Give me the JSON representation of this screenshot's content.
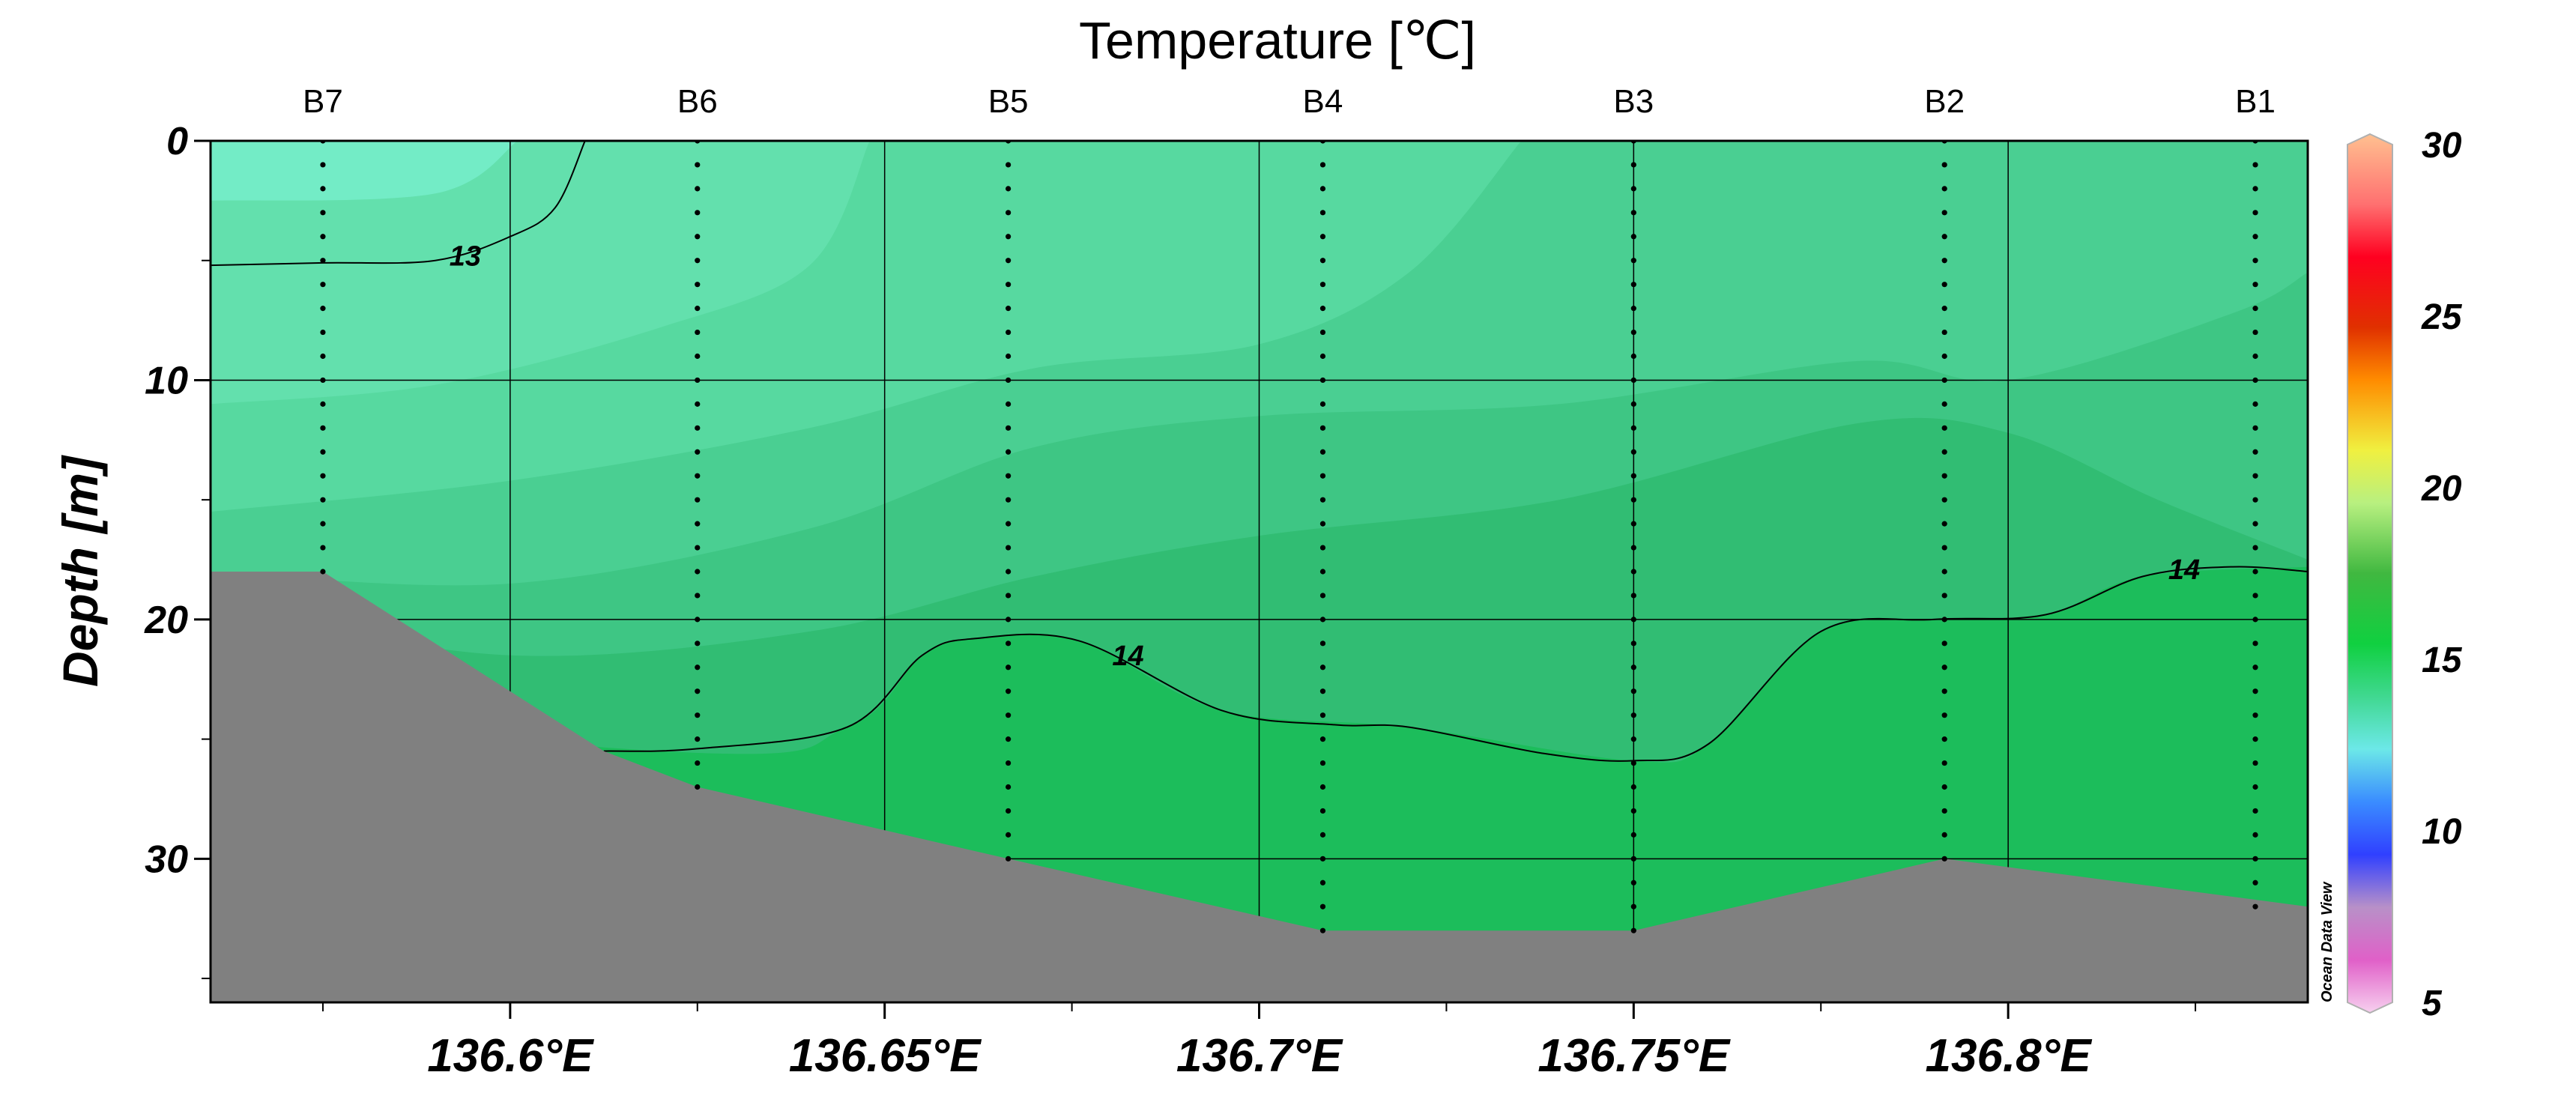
{
  "chart_data": {
    "type": "heatmap",
    "title": "Temperature [℃]",
    "ylabel": "Depth [m]",
    "xlabel": "",
    "x_tick_labels": [
      "136.6°E",
      "136.65°E",
      "136.7°E",
      "136.75°E",
      "136.8°E"
    ],
    "x_ticks": [
      136.6,
      136.65,
      136.7,
      136.75,
      136.8
    ],
    "x_minor_ticks": [
      136.575,
      136.625,
      136.675,
      136.725,
      136.775,
      136.825
    ],
    "xlim": [
      136.56,
      136.84
    ],
    "y_tick_labels": [
      "0",
      "10",
      "20",
      "30"
    ],
    "y_ticks": [
      0,
      10,
      20,
      30
    ],
    "y_minor_ticks": [
      5,
      15,
      25,
      35
    ],
    "ylim": [
      0,
      36
    ],
    "grid": true,
    "stations": [
      {
        "name": "B7",
        "lon": 136.575,
        "max_depth": 18
      },
      {
        "name": "B6",
        "lon": 136.625,
        "max_depth": 27
      },
      {
        "name": "B5",
        "lon": 136.6665,
        "max_depth": 30
      },
      {
        "name": "B4",
        "lon": 136.7085,
        "max_depth": 33
      },
      {
        "name": "B3",
        "lon": 136.75,
        "max_depth": 33
      },
      {
        "name": "B2",
        "lon": 136.7915,
        "max_depth": 30
      },
      {
        "name": "B1",
        "lon": 136.833,
        "max_depth": 32
      }
    ],
    "bathymetry": [
      [
        136.56,
        18
      ],
      [
        136.575,
        18
      ],
      [
        136.6125,
        25.5
      ],
      [
        136.625,
        27
      ],
      [
        136.6665,
        30
      ],
      [
        136.7085,
        33
      ],
      [
        136.75,
        33
      ],
      [
        136.7915,
        30
      ],
      [
        136.84,
        32
      ]
    ],
    "contours": [
      {
        "label": "13",
        "points": [
          [
            136.56,
            5.2
          ],
          [
            136.575,
            5.1
          ],
          [
            136.59,
            5
          ],
          [
            136.6,
            4
          ],
          [
            136.606,
            2.8
          ],
          [
            136.61,
            0
          ]
        ]
      },
      {
        "label": "14",
        "points": [
          [
            136.6125,
            25.5
          ],
          [
            136.625,
            25.4
          ],
          [
            136.645,
            24.5
          ],
          [
            136.655,
            21.5
          ],
          [
            136.662,
            20.8
          ],
          [
            136.676,
            20.9
          ],
          [
            136.695,
            23.8
          ],
          [
            136.71,
            24.4
          ],
          [
            136.72,
            24.5
          ],
          [
            136.738,
            25.6
          ],
          [
            136.75,
            25.9
          ],
          [
            136.76,
            25.2
          ],
          [
            136.775,
            20.5
          ],
          [
            136.79,
            20
          ],
          [
            136.805,
            19.8
          ],
          [
            136.818,
            18.2
          ],
          [
            136.83,
            17.8
          ],
          [
            136.84,
            18
          ]
        ]
      }
    ],
    "contour_label_positions": [
      {
        "label": "13",
        "lon": 136.594,
        "depth": 4.8
      },
      {
        "label": "14",
        "lon": 136.6825,
        "depth": 21.5
      },
      {
        "label": "14",
        "lon": 136.8235,
        "depth": 17.9
      }
    ],
    "field_bands": [
      {
        "value": 12.6,
        "color": "#73ecc6",
        "boundary": [
          [
            136.56,
            2.5
          ],
          [
            136.59,
            2.2
          ],
          [
            136.601,
            0
          ]
        ]
      },
      {
        "value": 13.0,
        "color": "#63e0ad",
        "boundary": [
          [
            136.56,
            11.0
          ],
          [
            136.59,
            10.2
          ],
          [
            136.62,
            7.8
          ],
          [
            136.64,
            5.2
          ],
          [
            136.648,
            0
          ]
        ]
      },
      {
        "value": 13.4,
        "color": "#57d9a0",
        "boundary": [
          [
            136.56,
            15.5
          ],
          [
            136.6,
            14.2
          ],
          [
            136.64,
            12.0
          ],
          [
            136.67,
            9.5
          ],
          [
            136.7,
            8.5
          ],
          [
            136.72,
            5.5
          ],
          [
            136.735,
            0
          ]
        ]
      },
      {
        "value": 13.7,
        "color": "#4acf92",
        "boundary": [
          [
            136.56,
            18.0
          ],
          [
            136.6,
            18.5
          ],
          [
            136.64,
            16.2
          ],
          [
            136.67,
            12.8
          ],
          [
            136.7,
            11.5
          ],
          [
            136.74,
            11.0
          ],
          [
            136.78,
            9.2
          ],
          [
            136.8,
            10.0
          ],
          [
            136.83,
            7.2
          ],
          [
            136.84,
            5.5
          ]
        ]
      },
      {
        "value": 14.0,
        "color": "#3ec684",
        "boundary": [
          [
            136.56,
            19.5
          ],
          [
            136.6,
            21.5
          ],
          [
            136.64,
            20.5
          ],
          [
            136.67,
            18.2
          ],
          [
            136.7,
            16.5
          ],
          [
            136.74,
            15.0
          ],
          [
            136.78,
            11.8
          ],
          [
            136.8,
            12.2
          ],
          [
            136.82,
            15.0
          ],
          [
            136.84,
            17.5
          ]
        ]
      },
      {
        "value": 14.3,
        "color": "#31bd73",
        "boundary": [
          [
            136.5,
            22
          ],
          [
            136.62,
            25.5
          ],
          [
            136.645,
            24.5
          ],
          [
            136.655,
            21.5
          ],
          [
            136.662,
            20.8
          ],
          [
            136.676,
            20.9
          ],
          [
            136.695,
            23.8
          ],
          [
            136.72,
            24.5
          ],
          [
            136.75,
            25.9
          ],
          [
            136.76,
            25.2
          ],
          [
            136.775,
            20.5
          ],
          [
            136.79,
            20
          ],
          [
            136.805,
            19.8
          ],
          [
            136.818,
            18.2
          ],
          [
            136.84,
            17.8
          ]
        ]
      }
    ],
    "background_color": "#5bd99f",
    "band_bottom_color": "#1cbd5b",
    "bathymetry_color": "#808080",
    "colorbar": {
      "min": 5,
      "max": 30,
      "tick_labels": [
        "5",
        "10",
        "15",
        "20",
        "25",
        "30"
      ],
      "ticks": [
        5,
        10,
        15,
        20,
        25,
        30
      ],
      "stops": [
        {
          "value": 5,
          "color": "#f7d0ef"
        },
        {
          "value": 6.5,
          "color": "#e060c8"
        },
        {
          "value": 8,
          "color": "#b890c8"
        },
        {
          "value": 9.5,
          "color": "#3040ff"
        },
        {
          "value": 11,
          "color": "#3a8cff"
        },
        {
          "value": 12.5,
          "color": "#6ce8e8"
        },
        {
          "value": 14,
          "color": "#40d890"
        },
        {
          "value": 15.5,
          "color": "#10d040"
        },
        {
          "value": 17.5,
          "color": "#40b840"
        },
        {
          "value": 19.5,
          "color": "#b8f080"
        },
        {
          "value": 21,
          "color": "#f0f040"
        },
        {
          "value": 23,
          "color": "#ff8c00"
        },
        {
          "value": 24.5,
          "color": "#e03000"
        },
        {
          "value": 26.5,
          "color": "#ff0020"
        },
        {
          "value": 28,
          "color": "#ff7070"
        },
        {
          "value": 30,
          "color": "#ffc090"
        }
      ]
    },
    "watermark": "Ocean Data View"
  }
}
